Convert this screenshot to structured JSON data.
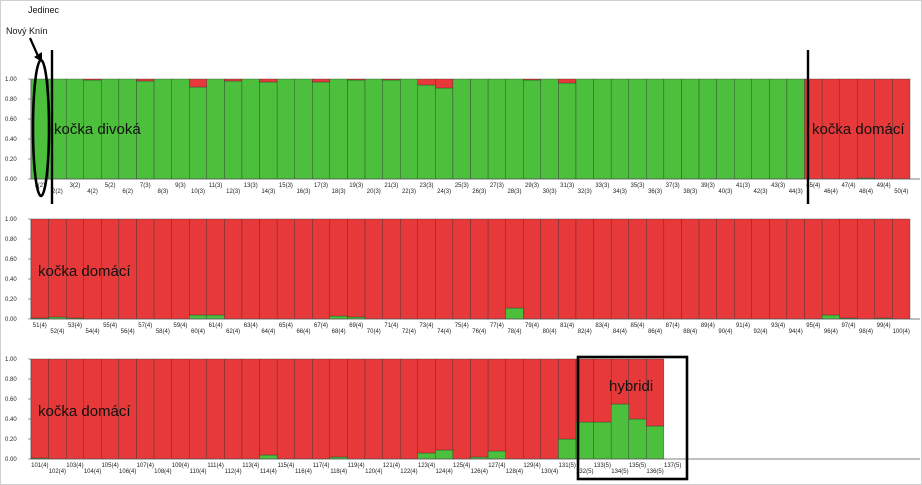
{
  "header": {
    "note_line1": "Jedinec",
    "note_line2": "Nový Knín"
  },
  "colors": {
    "wild": "#4cbf3c",
    "domestic": "#e8393a"
  },
  "chart_data": [
    {
      "type": "bar",
      "stacked": true,
      "ylim": [
        0,
        1
      ],
      "yticks": [
        "0.00",
        "0.20",
        "0.40",
        "0.60",
        "0.80",
        "1.00"
      ],
      "categories": [
        "1(2)",
        "2(2)",
        "3(2)",
        "4(2)",
        "5(2)",
        "6(2)",
        "7(3)",
        "8(3)",
        "9(3)",
        "10(3)",
        "11(3)",
        "12(3)",
        "13(3)",
        "14(3)",
        "15(3)",
        "16(3)",
        "17(3)",
        "18(3)",
        "19(3)",
        "20(3)",
        "21(3)",
        "22(3)",
        "23(3)",
        "24(3)",
        "25(3)",
        "26(3)",
        "27(3)",
        "28(3)",
        "29(3)",
        "30(3)",
        "31(3)",
        "32(3)",
        "33(3)",
        "34(3)",
        "35(3)",
        "36(3)",
        "37(3)",
        "38(3)",
        "39(3)",
        "40(3)",
        "41(3)",
        "42(3)",
        "43(3)",
        "44(3)",
        "45(4)",
        "46(4)",
        "47(4)",
        "48(4)",
        "49(4)",
        "50(4)"
      ],
      "series": [
        {
          "key": "wild",
          "values": [
            1,
            1,
            1,
            0.99,
            1,
            1,
            0.98,
            1,
            1,
            0.92,
            1,
            0.98,
            1,
            0.97,
            1,
            1,
            0.97,
            1,
            0.99,
            1,
            0.99,
            1,
            0.94,
            0.91,
            1,
            1,
            1,
            1,
            0.99,
            1,
            0.96,
            1,
            1,
            1,
            1,
            1,
            1,
            1,
            1,
            1,
            1,
            1,
            1,
            1,
            0,
            0,
            0,
            0.01,
            0,
            0
          ]
        },
        {
          "key": "domestic",
          "values": [
            0,
            0,
            0,
            0.01,
            0,
            0,
            0.02,
            0,
            0,
            0.08,
            0,
            0.02,
            0,
            0.03,
            0,
            0,
            0.03,
            0,
            0.01,
            0,
            0.01,
            0,
            0.06,
            0.09,
            0,
            0,
            0,
            0,
            0.01,
            0,
            0.04,
            0,
            0,
            0,
            0,
            0,
            0,
            0,
            0,
            0,
            0,
            0,
            0,
            0,
            1,
            1,
            1,
            0.99,
            1,
            1
          ]
        }
      ],
      "annotations": [
        "kočka divoká",
        "kočka domácí"
      ]
    },
    {
      "type": "bar",
      "stacked": true,
      "ylim": [
        0,
        1
      ],
      "yticks": [
        "0.00",
        "0.20",
        "0.40",
        "0.60",
        "0.80",
        "1.00"
      ],
      "categories": [
        "51(4)",
        "52(4)",
        "53(4)",
        "54(4)",
        "55(4)",
        "56(4)",
        "57(4)",
        "58(4)",
        "59(4)",
        "60(4)",
        "61(4)",
        "62(4)",
        "63(4)",
        "64(4)",
        "65(4)",
        "66(4)",
        "67(4)",
        "68(4)",
        "69(4)",
        "70(4)",
        "71(4)",
        "72(4)",
        "73(4)",
        "74(4)",
        "75(4)",
        "76(4)",
        "77(4)",
        "78(4)",
        "79(4)",
        "80(4)",
        "81(4)",
        "82(4)",
        "83(4)",
        "84(4)",
        "85(4)",
        "86(4)",
        "87(4)",
        "88(4)",
        "89(4)",
        "90(4)",
        "91(4)",
        "92(4)",
        "93(4)",
        "94(4)",
        "95(4)",
        "96(4)",
        "97(4)",
        "98(4)",
        "99(4)",
        "100(4)"
      ],
      "series": [
        {
          "key": "wild",
          "values": [
            0.01,
            0.02,
            0.01,
            0,
            0,
            0,
            0,
            0,
            0,
            0.04,
            0.04,
            0,
            0,
            0,
            0,
            0,
            0,
            0.03,
            0.02,
            0,
            0,
            0,
            0,
            0,
            0,
            0,
            0,
            0.11,
            0,
            0,
            0,
            0,
            0,
            0,
            0,
            0,
            0,
            0,
            0,
            0,
            0,
            0,
            0,
            0,
            0,
            0.04,
            0.01,
            0,
            0.01,
            0
          ]
        },
        {
          "key": "domestic",
          "values": [
            0.99,
            0.98,
            0.99,
            1,
            1,
            1,
            1,
            1,
            1,
            0.96,
            0.96,
            1,
            1,
            1,
            1,
            1,
            1,
            0.97,
            0.98,
            1,
            1,
            1,
            1,
            1,
            1,
            1,
            1,
            0.89,
            1,
            1,
            1,
            1,
            1,
            1,
            1,
            1,
            1,
            1,
            1,
            1,
            1,
            1,
            1,
            1,
            1,
            0.96,
            0.99,
            1,
            0.99,
            1
          ]
        }
      ],
      "annotations": [
        "kočka domácí"
      ]
    },
    {
      "type": "bar",
      "stacked": true,
      "ylim": [
        0,
        1
      ],
      "yticks": [
        "0.00",
        "0.20",
        "0.40",
        "0.60",
        "0.80",
        "1.00"
      ],
      "categories": [
        "101(4)",
        "102(4)",
        "103(4)",
        "104(4)",
        "105(4)",
        "106(4)",
        "107(4)",
        "108(4)",
        "109(4)",
        "110(4)",
        "111(4)",
        "112(4)",
        "113(4)",
        "114(4)",
        "115(4)",
        "116(4)",
        "117(4)",
        "118(4)",
        "119(4)",
        "120(4)",
        "121(4)",
        "122(4)",
        "123(4)",
        "124(4)",
        "125(4)",
        "126(4)",
        "127(4)",
        "128(4)",
        "129(4)",
        "130(4)",
        "131(5)",
        "132(5)",
        "133(5)",
        "134(5)",
        "135(5)",
        "136(5)",
        "137(5)"
      ],
      "series": [
        {
          "key": "wild",
          "values": [
            0.01,
            0,
            0,
            0,
            0,
            0,
            0,
            0,
            0,
            0,
            0,
            0,
            0,
            0.04,
            0,
            0,
            0,
            0.02,
            0,
            0,
            0,
            0,
            0.06,
            0.09,
            0,
            0.02,
            0.08,
            0,
            0,
            0,
            0.2,
            0.37,
            0.37,
            0.55,
            0.4,
            0.33,
            0
          ]
        },
        {
          "key": "domestic",
          "values": [
            0.99,
            1,
            1,
            1,
            1,
            1,
            1,
            1,
            1,
            1,
            1,
            1,
            1,
            0.96,
            1,
            1,
            1,
            0.98,
            1,
            1,
            1,
            1,
            0.94,
            0.91,
            1,
            0.98,
            0.92,
            1,
            1,
            1,
            0.8,
            0.63,
            0.63,
            0.45,
            0.6,
            0.67,
            0
          ]
        }
      ],
      "annotations": [
        "kočka domácí",
        "hybridi"
      ]
    }
  ]
}
